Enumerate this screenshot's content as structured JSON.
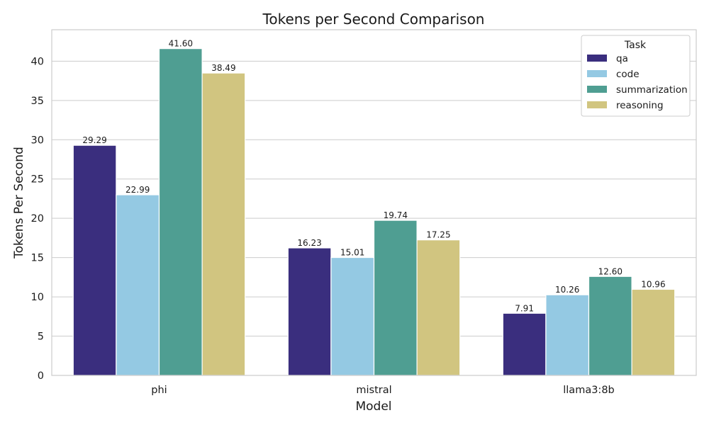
{
  "chart_data": {
    "type": "bar",
    "title": "Tokens per Second Comparison",
    "xlabel": "Model",
    "ylabel": "Tokens Per Second",
    "ylim": [
      0,
      44
    ],
    "yticks": [
      0,
      5,
      10,
      15,
      20,
      25,
      30,
      35,
      40
    ],
    "grid": "horizontal",
    "categories": [
      "phi",
      "mistral",
      "llama3:8b"
    ],
    "series": [
      {
        "name": "qa",
        "color": "#3a2e7e",
        "values": [
          29.29,
          16.23,
          7.91
        ],
        "labels": [
          "29.29",
          "16.23",
          "7.91"
        ]
      },
      {
        "name": "code",
        "color": "#94c9e3",
        "values": [
          22.99,
          15.01,
          10.26
        ],
        "labels": [
          "22.99",
          "15.01",
          "10.26"
        ]
      },
      {
        "name": "summarization",
        "color": "#4f9e92",
        "values": [
          41.6,
          19.74,
          12.6
        ],
        "labels": [
          "41.60",
          "19.74",
          "12.60"
        ]
      },
      {
        "name": "reasoning",
        "color": "#d1c580",
        "values": [
          38.49,
          17.25,
          10.96
        ],
        "labels": [
          "38.49",
          "17.25",
          "10.96"
        ]
      }
    ],
    "legend": {
      "title": "Task",
      "placement": "top-right"
    }
  }
}
